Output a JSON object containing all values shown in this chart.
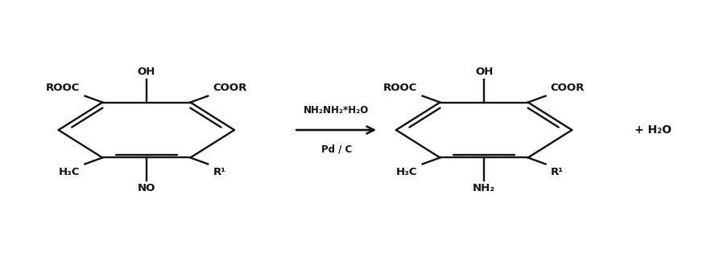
{
  "figure_width": 8.79,
  "figure_height": 3.24,
  "dpi": 100,
  "background_color": "#ffffff",
  "line_color": "#111111",
  "line_width": 1.7,
  "text_color": "#111111",
  "font_size_label": 9.5,
  "font_size_small": 8.5,
  "font_size_large": 10,
  "arrow_above": "NH₂NH₂*H₂O",
  "arrow_below": "Pd / C",
  "plus_h2o": "+ H₂O",
  "left_mol": {
    "oh_label": "OH",
    "rooc_label": "ROOC",
    "coor_label": "COOR",
    "h3c_label": "H₃C",
    "r1_label": "R¹",
    "no_label": "NO"
  },
  "right_mol": {
    "oh_label": "OH",
    "rooc_label": "ROOC",
    "coor_label": "COOR",
    "h3c_label": "H₃C",
    "r1_label": "R¹",
    "nh2_label": "NH₂"
  }
}
